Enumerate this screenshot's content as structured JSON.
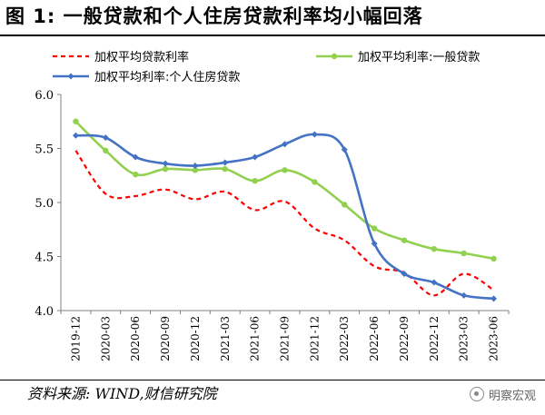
{
  "title": "图 1:  一般贷款和个人住房贷款利率均小幅回落",
  "source": {
    "label": "资料来源:",
    "text": "WIND,财信研究院"
  },
  "watermark": {
    "icon": "wechat-icon",
    "text": "明察宏观"
  },
  "chart_data": {
    "type": "line",
    "title": "",
    "xlabel": "",
    "ylabel": "",
    "categories": [
      "2019-12",
      "2020-03",
      "2020-06",
      "2020-09",
      "2020-12",
      "2021-03",
      "2021-06",
      "2021-09",
      "2021-12",
      "2022-03",
      "2022-06",
      "2022-09",
      "2022-12",
      "2023-03",
      "2023-06"
    ],
    "ylim": [
      4.0,
      6.0
    ],
    "yticks": [
      "4.0",
      "4.5",
      "5.0",
      "5.5",
      "6.0"
    ],
    "grid": false,
    "legend_position": "top",
    "series": [
      {
        "name": "加权平均贷款利率",
        "color": "#ff0000",
        "style": "dashed",
        "marker": "none",
        "values": [
          5.48,
          5.08,
          5.06,
          5.12,
          5.03,
          5.1,
          4.93,
          5.01,
          4.76,
          4.65,
          4.41,
          4.35,
          4.14,
          4.34,
          4.19
        ]
      },
      {
        "name": "加权平均利率:一般贷款",
        "color": "#92d050",
        "style": "solid",
        "marker": "circle",
        "values": [
          5.75,
          5.48,
          5.26,
          5.31,
          5.3,
          5.31,
          5.2,
          5.3,
          5.19,
          4.98,
          4.76,
          4.65,
          4.57,
          4.53,
          4.48
        ]
      },
      {
        "name": "加权平均利率:个人住房贷款",
        "color": "#4472c4",
        "style": "solid",
        "marker": "diamond",
        "values": [
          5.62,
          5.6,
          5.42,
          5.36,
          5.34,
          5.37,
          5.42,
          5.54,
          5.63,
          5.49,
          4.62,
          4.34,
          4.26,
          4.14,
          4.11
        ]
      }
    ]
  }
}
